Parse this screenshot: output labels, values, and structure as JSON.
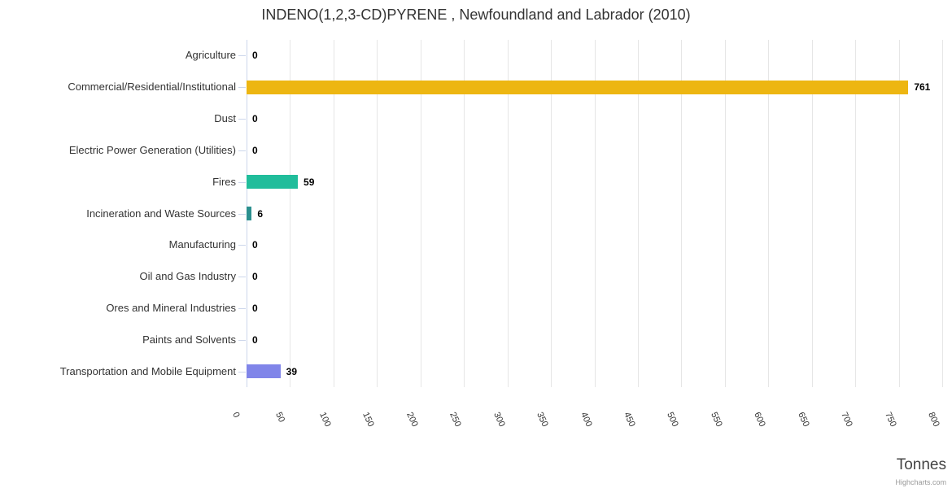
{
  "credits": "Highcharts.com",
  "chart_data": {
    "type": "bar",
    "title": "INDENO(1,2,3-CD)PYRENE , Newfoundland and Labrador (2010)",
    "categories": [
      "Agriculture",
      "Commercial/Residential/Institutional",
      "Dust",
      "Electric Power Generation (Utilities)",
      "Fires",
      "Incineration and Waste Sources",
      "Manufacturing",
      "Oil and Gas Industry",
      "Ores and Mineral Industries",
      "Paints and Solvents",
      "Transportation and Mobile Equipment"
    ],
    "values": [
      0,
      761,
      0,
      0,
      59,
      6,
      0,
      0,
      0,
      0,
      39
    ],
    "bar_colors": [
      null,
      "#edb612",
      null,
      null,
      "#20bd9b",
      "#2b908f",
      null,
      null,
      null,
      null,
      "#8085e9"
    ],
    "xlabel": "Tonnes",
    "ylabel": "",
    "xlim": [
      0,
      800
    ],
    "xticks": [
      0,
      50,
      100,
      150,
      200,
      250,
      300,
      350,
      400,
      450,
      500,
      550,
      600,
      650,
      700,
      750,
      800
    ],
    "grid": true,
    "legend": false,
    "tick_label_rotation_deg": 65
  },
  "style": {
    "grid_color": "#e6e6e6",
    "axis_color": "#ccd6eb",
    "label_color": "#333333",
    "data_label_color": "#000000",
    "title_color": "#333333",
    "axis_title_color": "#444444",
    "credits_color": "#999999"
  }
}
